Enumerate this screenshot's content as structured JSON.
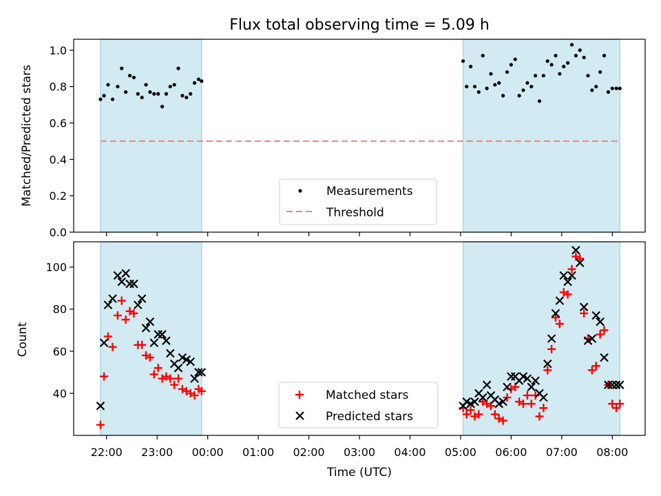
{
  "chart_data": {
    "type": "scatter",
    "title": "Flux total observing time = 5.09 h",
    "xlabel": "Time (UTC)",
    "x_unit": "hours after 22:00 UTC",
    "xlim": [
      -0.65,
      10.65
    ],
    "x_ticks": [
      {
        "value": 0,
        "label": "22:00"
      },
      {
        "value": 1,
        "label": "23:00"
      },
      {
        "value": 2,
        "label": "00:00"
      },
      {
        "value": 3,
        "label": "01:00"
      },
      {
        "value": 4,
        "label": "02:00"
      },
      {
        "value": 5,
        "label": "03:00"
      },
      {
        "value": 6,
        "label": "04:00"
      },
      {
        "value": 7,
        "label": "05:00"
      },
      {
        "value": 8,
        "label": "06:00"
      },
      {
        "value": 9,
        "label": "07:00"
      },
      {
        "value": 10,
        "label": "08:00"
      }
    ],
    "shaded_intervals": [
      [
        -0.12,
        1.88
      ],
      [
        7.05,
        10.15
      ]
    ],
    "shade_color": "#add8e6",
    "panels": [
      {
        "id": "ratio",
        "ylabel": "Matched/Predicted stars",
        "ylim": [
          0,
          1.06
        ],
        "y_ticks": [
          0.0,
          0.2,
          0.4,
          0.6,
          0.8,
          1.0
        ],
        "y_tick_labels": [
          "0.0",
          "0.2",
          "0.4",
          "0.6",
          "0.8",
          "1.0"
        ],
        "threshold": {
          "value": 0.5,
          "color": "#f08080"
        },
        "legend": {
          "position": "lower-center",
          "entries": [
            "Measurements",
            "Threshold"
          ]
        },
        "series": [
          {
            "name": "Measurements",
            "marker": "dot",
            "color": "#000000",
            "x": [
              -0.12,
              -0.05,
              0.03,
              0.12,
              0.22,
              0.3,
              0.38,
              0.46,
              0.54,
              0.62,
              0.7,
              0.78,
              0.86,
              0.94,
              1.02,
              1.1,
              1.18,
              1.26,
              1.34,
              1.42,
              1.5,
              1.58,
              1.66,
              1.74,
              1.82,
              1.88,
              7.05,
              7.12,
              7.2,
              7.28,
              7.36,
              7.44,
              7.52,
              7.6,
              7.68,
              7.76,
              7.84,
              7.92,
              8.0,
              8.08,
              8.16,
              8.24,
              8.32,
              8.4,
              8.48,
              8.56,
              8.64,
              8.72,
              8.8,
              8.88,
              8.96,
              9.04,
              9.12,
              9.2,
              9.28,
              9.36,
              9.44,
              9.52,
              9.6,
              9.68,
              9.76,
              9.84,
              9.92,
              10.0,
              10.08,
              10.15
            ],
            "values": [
              0.73,
              0.75,
              0.81,
              0.73,
              0.8,
              0.9,
              0.77,
              0.86,
              0.85,
              0.76,
              0.74,
              0.81,
              0.77,
              0.76,
              0.76,
              0.69,
              0.76,
              0.8,
              0.81,
              0.9,
              0.75,
              0.74,
              0.76,
              0.82,
              0.84,
              0.83,
              0.94,
              0.8,
              0.91,
              0.8,
              0.77,
              0.97,
              0.79,
              0.87,
              0.81,
              0.82,
              0.75,
              0.88,
              0.92,
              0.95,
              0.75,
              0.78,
              0.82,
              0.8,
              0.86,
              0.72,
              0.86,
              0.94,
              0.92,
              0.97,
              0.87,
              0.91,
              0.93,
              1.03,
              0.97,
              1.0,
              0.96,
              0.86,
              0.78,
              0.8,
              0.88,
              0.97,
              0.77,
              0.79,
              0.79,
              0.79
            ]
          }
        ]
      },
      {
        "id": "counts",
        "ylabel": "Count",
        "ylim": [
          20,
          112
        ],
        "y_ticks": [
          40,
          60,
          80,
          100
        ],
        "y_tick_labels": [
          "40",
          "60",
          "80",
          "100"
        ],
        "legend": {
          "position": "lower-center",
          "entries": [
            "Matched stars",
            "Predicted stars"
          ]
        },
        "series": [
          {
            "name": "Matched stars",
            "marker": "plus",
            "color": "#ff0000",
            "x": [
              -0.12,
              -0.05,
              0.03,
              0.12,
              0.22,
              0.3,
              0.38,
              0.46,
              0.54,
              0.62,
              0.7,
              0.78,
              0.86,
              0.94,
              1.02,
              1.1,
              1.18,
              1.26,
              1.34,
              1.42,
              1.5,
              1.58,
              1.66,
              1.74,
              1.82,
              1.88,
              7.05,
              7.12,
              7.2,
              7.28,
              7.36,
              7.44,
              7.52,
              7.6,
              7.68,
              7.76,
              7.84,
              7.92,
              8.0,
              8.08,
              8.16,
              8.24,
              8.32,
              8.4,
              8.48,
              8.56,
              8.64,
              8.72,
              8.8,
              8.88,
              8.96,
              9.04,
              9.12,
              9.2,
              9.28,
              9.36,
              9.44,
              9.52,
              9.6,
              9.68,
              9.76,
              9.84,
              9.92,
              10.0,
              10.08,
              10.15
            ],
            "values": [
              25,
              48,
              67,
              62,
              77,
              84,
              75,
              79,
              78,
              63,
              63,
              58,
              57,
              49,
              52,
              47,
              48,
              47,
              44,
              47,
              42,
              41,
              40,
              39,
              42,
              41,
              33,
              30,
              32,
              29,
              30,
              36,
              35,
              34,
              30,
              28,
              27,
              38,
              42,
              43,
              36,
              35,
              39,
              35,
              39,
              29,
              33,
              51,
              61,
              76,
              73,
              88,
              87,
              99,
              105,
              104,
              78,
              66,
              51,
              53,
              68,
              70,
              44,
              35,
              33,
              35
            ]
          },
          {
            "name": "Predicted stars",
            "marker": "x",
            "color": "#000000",
            "x": [
              -0.12,
              -0.05,
              0.03,
              0.12,
              0.22,
              0.3,
              0.38,
              0.46,
              0.54,
              0.62,
              0.7,
              0.78,
              0.86,
              0.94,
              1.02,
              1.1,
              1.18,
              1.26,
              1.34,
              1.42,
              1.5,
              1.58,
              1.66,
              1.74,
              1.82,
              1.88,
              7.05,
              7.12,
              7.2,
              7.28,
              7.36,
              7.44,
              7.52,
              7.6,
              7.68,
              7.76,
              7.84,
              7.92,
              8.0,
              8.08,
              8.16,
              8.24,
              8.32,
              8.4,
              8.48,
              8.56,
              8.64,
              8.72,
              8.8,
              8.88,
              8.96,
              9.04,
              9.12,
              9.2,
              9.28,
              9.36,
              9.44,
              9.52,
              9.6,
              9.68,
              9.76,
              9.84,
              9.92,
              10.0,
              10.08,
              10.15
            ],
            "values": [
              34,
              64,
              82,
              85,
              96,
              93,
              97,
              92,
              92,
              82,
              85,
              71,
              74,
              64,
              68,
              68,
              65,
              59,
              54,
              52,
              57,
              56,
              55,
              47,
              50,
              50,
              34,
              36,
              35,
              36,
              40,
              38,
              44,
              39,
              37,
              35,
              36,
              43,
              48,
              48,
              46,
              48,
              47,
              43,
              46,
              40,
              38,
              54,
              66,
              78,
              84,
              96,
              93,
              96,
              108,
              102,
              81,
              65,
              66,
              77,
              74,
              57,
              44,
              44,
              44,
              44
            ]
          }
        ]
      }
    ]
  }
}
